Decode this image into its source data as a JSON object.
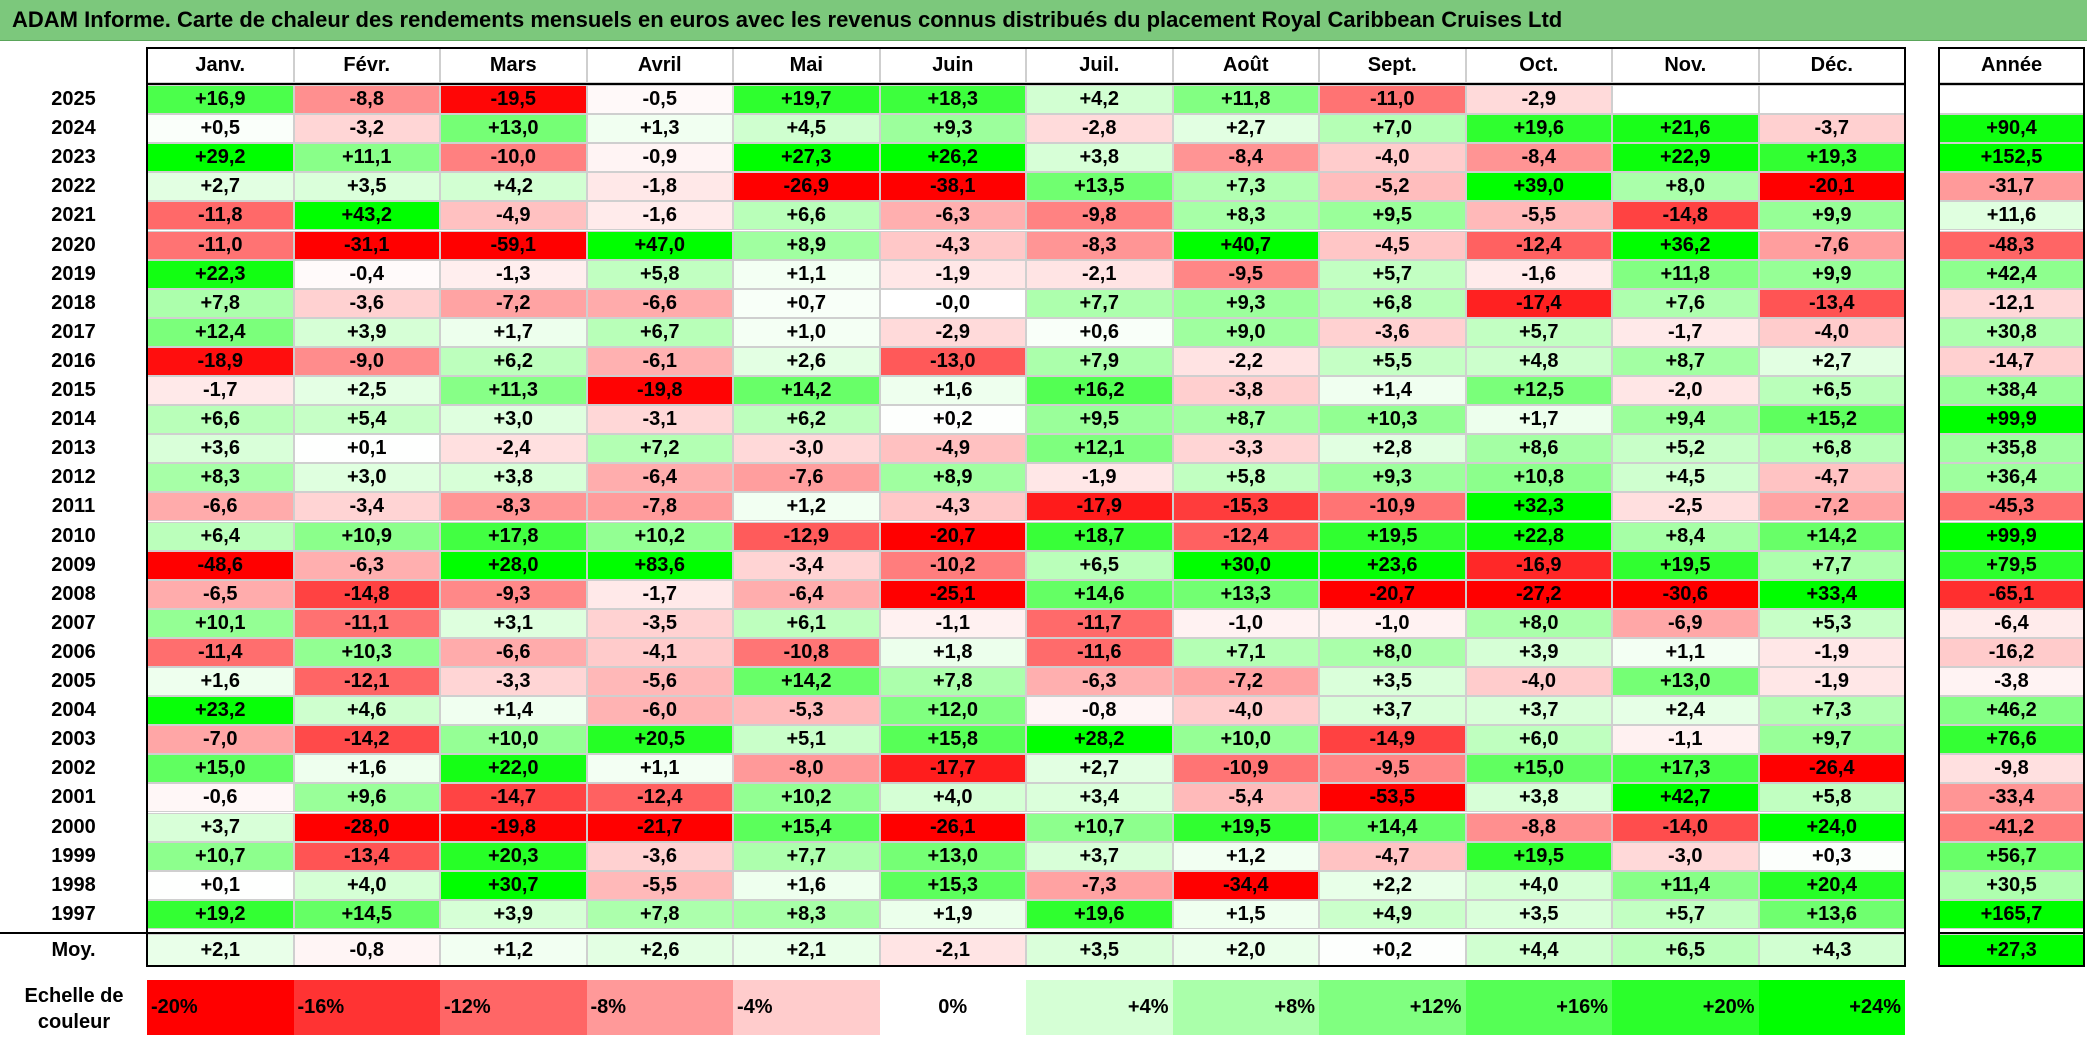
{
  "title": "ADAM Informe. Carte de chaleur des rendements mensuels en euros avec les revenus connus distribués du placement Royal Caribbean Cruises Ltd",
  "chart_data": {
    "type": "heatmap",
    "title": "ADAM Informe. Carte de chaleur des rendements mensuels en euros avec les revenus connus distribués du placement Royal Caribbean Cruises Ltd",
    "months": [
      "Janv.",
      "Févr.",
      "Mars",
      "Avril",
      "Mai",
      "Juin",
      "Juil.",
      "Août",
      "Sept.",
      "Oct.",
      "Nov.",
      "Déc."
    ],
    "year_header": "Année",
    "rows": [
      {
        "year": "2025",
        "values": [
          "+16,9",
          "-8,8",
          "-19,5",
          "-0,5",
          "+19,7",
          "+18,3",
          "+4,2",
          "+11,8",
          "-11,0",
          "-2,9",
          "",
          ""
        ],
        "annual": ""
      },
      {
        "year": "2024",
        "values": [
          "+0,5",
          "-3,2",
          "+13,0",
          "+1,3",
          "+4,5",
          "+9,3",
          "-2,8",
          "+2,7",
          "+7,0",
          "+19,6",
          "+21,6",
          "-3,7"
        ],
        "annual": "+90,4"
      },
      {
        "year": "2023",
        "values": [
          "+29,2",
          "+11,1",
          "-10,0",
          "-0,9",
          "+27,3",
          "+26,2",
          "+3,8",
          "-8,4",
          "-4,0",
          "-8,4",
          "+22,9",
          "+19,3"
        ],
        "annual": "+152,5"
      },
      {
        "year": "2022",
        "values": [
          "+2,7",
          "+3,5",
          "+4,2",
          "-1,8",
          "-26,9",
          "-38,1",
          "+13,5",
          "+7,3",
          "-5,2",
          "+39,0",
          "+8,0",
          "-20,1"
        ],
        "annual": "-31,7"
      },
      {
        "year": "2021",
        "values": [
          "-11,8",
          "+43,2",
          "-4,9",
          "-1,6",
          "+6,6",
          "-6,3",
          "-9,8",
          "+8,3",
          "+9,5",
          "-5,5",
          "-14,8",
          "+9,9"
        ],
        "annual": "+11,6"
      },
      {
        "year": "2020",
        "values": [
          "-11,0",
          "-31,1",
          "-59,1",
          "+47,0",
          "+8,9",
          "-4,3",
          "-8,3",
          "+40,7",
          "-4,5",
          "-12,4",
          "+36,2",
          "-7,6"
        ],
        "annual": "-48,3"
      },
      {
        "year": "2019",
        "values": [
          "+22,3",
          "-0,4",
          "-1,3",
          "+5,8",
          "+1,1",
          "-1,9",
          "-2,1",
          "-9,5",
          "+5,7",
          "-1,6",
          "+11,8",
          "+9,9"
        ],
        "annual": "+42,4"
      },
      {
        "year": "2018",
        "values": [
          "+7,8",
          "-3,6",
          "-7,2",
          "-6,6",
          "+0,7",
          "-0,0",
          "+7,7",
          "+9,3",
          "+6,8",
          "-17,4",
          "+7,6",
          "-13,4"
        ],
        "annual": "-12,1"
      },
      {
        "year": "2017",
        "values": [
          "+12,4",
          "+3,9",
          "+1,7",
          "+6,7",
          "+1,0",
          "-2,9",
          "+0,6",
          "+9,0",
          "-3,6",
          "+5,7",
          "-1,7",
          "-4,0"
        ],
        "annual": "+30,8"
      },
      {
        "year": "2016",
        "values": [
          "-18,9",
          "-9,0",
          "+6,2",
          "-6,1",
          "+2,6",
          "-13,0",
          "+7,9",
          "-2,2",
          "+5,5",
          "+4,8",
          "+8,7",
          "+2,7"
        ],
        "annual": "-14,7"
      },
      {
        "year": "2015",
        "values": [
          "-1,7",
          "+2,5",
          "+11,3",
          "-19,8",
          "+14,2",
          "+1,6",
          "+16,2",
          "-3,8",
          "+1,4",
          "+12,5",
          "-2,0",
          "+6,5"
        ],
        "annual": "+38,4"
      },
      {
        "year": "2014",
        "values": [
          "+6,6",
          "+5,4",
          "+3,0",
          "-3,1",
          "+6,2",
          "+0,2",
          "+9,5",
          "+8,7",
          "+10,3",
          "+1,7",
          "+9,4",
          "+15,2"
        ],
        "annual": "+99,9"
      },
      {
        "year": "2013",
        "values": [
          "+3,6",
          "+0,1",
          "-2,4",
          "+7,2",
          "-3,0",
          "-4,9",
          "+12,1",
          "-3,3",
          "+2,8",
          "+8,6",
          "+5,2",
          "+6,8"
        ],
        "annual": "+35,8"
      },
      {
        "year": "2012",
        "values": [
          "+8,3",
          "+3,0",
          "+3,8",
          "-6,4",
          "-7,6",
          "+8,9",
          "-1,9",
          "+5,8",
          "+9,3",
          "+10,8",
          "+4,5",
          "-4,7"
        ],
        "annual": "+36,4"
      },
      {
        "year": "2011",
        "values": [
          "-6,6",
          "-3,4",
          "-8,3",
          "-7,8",
          "+1,2",
          "-4,3",
          "-17,9",
          "-15,3",
          "-10,9",
          "+32,3",
          "-2,5",
          "-7,2"
        ],
        "annual": "-45,3"
      },
      {
        "year": "2010",
        "values": [
          "+6,4",
          "+10,9",
          "+17,8",
          "+10,2",
          "-12,9",
          "-20,7",
          "+18,7",
          "-12,4",
          "+19,5",
          "+22,8",
          "+8,4",
          "+14,2"
        ],
        "annual": "+99,9"
      },
      {
        "year": "2009",
        "values": [
          "-48,6",
          "-6,3",
          "+28,0",
          "+83,6",
          "-3,4",
          "-10,2",
          "+6,5",
          "+30,0",
          "+23,6",
          "-16,9",
          "+19,5",
          "+7,7"
        ],
        "annual": "+79,5"
      },
      {
        "year": "2008",
        "values": [
          "-6,5",
          "-14,8",
          "-9,3",
          "-1,7",
          "-6,4",
          "-25,1",
          "+14,6",
          "+13,3",
          "-20,7",
          "-27,2",
          "-30,6",
          "+33,4"
        ],
        "annual": "-65,1"
      },
      {
        "year": "2007",
        "values": [
          "+10,1",
          "-11,1",
          "+3,1",
          "-3,5",
          "+6,1",
          "-1,1",
          "-11,7",
          "-1,0",
          "-1,0",
          "+8,0",
          "-6,9",
          "+5,3"
        ],
        "annual": "-6,4"
      },
      {
        "year": "2006",
        "values": [
          "-11,4",
          "+10,3",
          "-6,6",
          "-4,1",
          "-10,8",
          "+1,8",
          "-11,6",
          "+7,1",
          "+8,0",
          "+3,9",
          "+1,1",
          "-1,9"
        ],
        "annual": "-16,2"
      },
      {
        "year": "2005",
        "values": [
          "+1,6",
          "-12,1",
          "-3,3",
          "-5,6",
          "+14,2",
          "+7,8",
          "-6,3",
          "-7,2",
          "+3,5",
          "-4,0",
          "+13,0",
          "-1,9"
        ],
        "annual": "-3,8"
      },
      {
        "year": "2004",
        "values": [
          "+23,2",
          "+4,6",
          "+1,4",
          "-6,0",
          "-5,3",
          "+12,0",
          "-0,8",
          "-4,0",
          "+3,7",
          "+3,7",
          "+2,4",
          "+7,3"
        ],
        "annual": "+46,2"
      },
      {
        "year": "2003",
        "values": [
          "-7,0",
          "-14,2",
          "+10,0",
          "+20,5",
          "+5,1",
          "+15,8",
          "+28,2",
          "+10,0",
          "-14,9",
          "+6,0",
          "-1,1",
          "+9,7"
        ],
        "annual": "+76,6"
      },
      {
        "year": "2002",
        "values": [
          "+15,0",
          "+1,6",
          "+22,0",
          "+1,1",
          "-8,0",
          "-17,7",
          "+2,7",
          "-10,9",
          "-9,5",
          "+15,0",
          "+17,3",
          "-26,4"
        ],
        "annual": "-9,8"
      },
      {
        "year": "2001",
        "values": [
          "-0,6",
          "+9,6",
          "-14,7",
          "-12,4",
          "+10,2",
          "+4,0",
          "+3,4",
          "-5,4",
          "-53,5",
          "+3,8",
          "+42,7",
          "+5,8"
        ],
        "annual": "-33,4"
      },
      {
        "year": "2000",
        "values": [
          "+3,7",
          "-28,0",
          "-19,8",
          "-21,7",
          "+15,4",
          "-26,1",
          "+10,7",
          "+19,5",
          "+14,4",
          "-8,8",
          "-14,0",
          "+24,0"
        ],
        "annual": "-41,2"
      },
      {
        "year": "1999",
        "values": [
          "+10,7",
          "-13,4",
          "+20,3",
          "-3,6",
          "+7,7",
          "+13,0",
          "+3,7",
          "+1,2",
          "-4,7",
          "+19,5",
          "-3,0",
          "+0,3"
        ],
        "annual": "+56,7"
      },
      {
        "year": "1998",
        "values": [
          "+0,1",
          "+4,0",
          "+30,7",
          "-5,5",
          "+1,6",
          "+15,3",
          "-7,3",
          "-34,4",
          "+2,2",
          "+4,0",
          "+11,4",
          "+20,4"
        ],
        "annual": "+30,5"
      },
      {
        "year": "1997",
        "values": [
          "+19,2",
          "+14,5",
          "+3,9",
          "+7,8",
          "+8,3",
          "+1,9",
          "+19,6",
          "+1,5",
          "+4,9",
          "+3,5",
          "+5,7",
          "+13,6"
        ],
        "annual": "+165,7"
      }
    ],
    "average": {
      "label": "Moy.",
      "values": [
        "+2,1",
        "-0,8",
        "+1,2",
        "+2,6",
        "+2,1",
        "-2,1",
        "+3,5",
        "+2,0",
        "+0,2",
        "+4,4",
        "+6,5",
        "+4,3"
      ],
      "annual": "+27,3"
    },
    "scale": {
      "label": "Echelle de couleur",
      "steps": [
        {
          "text": "-20%",
          "value": -20,
          "color": "#ff0000"
        },
        {
          "text": "-16%",
          "value": -16,
          "color": "#ff3333"
        },
        {
          "text": "-12%",
          "value": -12,
          "color": "#ff6666"
        },
        {
          "text": "-8%",
          "value": -8,
          "color": "#ff9999"
        },
        {
          "text": "-4%",
          "value": -4,
          "color": "#ffcccc"
        },
        {
          "text": "0%",
          "value": 0,
          "color": "#ffffff"
        },
        {
          "text": "+4%",
          "value": 4,
          "color": "#d5ffd5"
        },
        {
          "text": "+8%",
          "value": 8,
          "color": "#aaffaa"
        },
        {
          "text": "+12%",
          "value": 12,
          "color": "#80ff80"
        },
        {
          "text": "+16%",
          "value": 16,
          "color": "#55ff55"
        },
        {
          "text": "+20%",
          "value": 20,
          "color": "#2bff2b"
        },
        {
          "text": "+24%",
          "value": 24,
          "color": "#00ff00"
        }
      ]
    }
  }
}
